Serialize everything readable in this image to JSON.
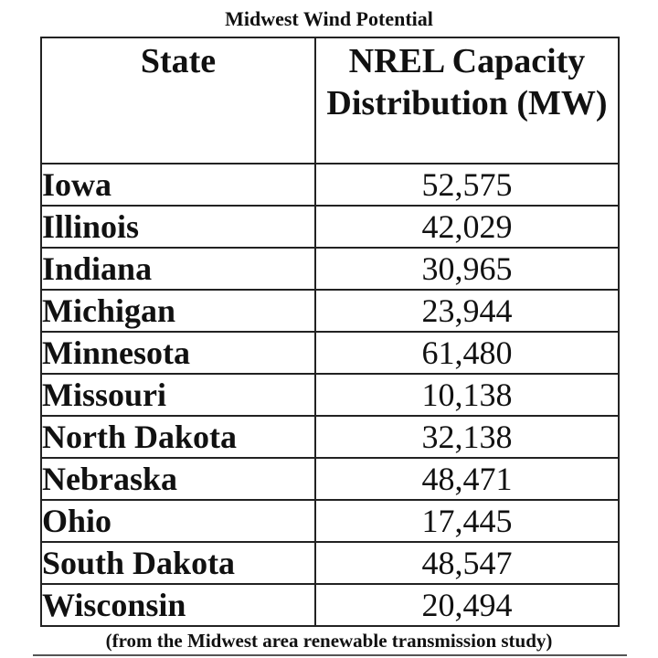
{
  "chart_data": {
    "type": "table",
    "title": "Midwest Wind Potential",
    "columns": [
      "State",
      "NREL Capacity Distribution (MW)"
    ],
    "rows": [
      {
        "state": "Iowa",
        "value": "52,575"
      },
      {
        "state": "Illinois",
        "value": "42,029"
      },
      {
        "state": "Indiana",
        "value": "30,965"
      },
      {
        "state": "Michigan",
        "value": "23,944"
      },
      {
        "state": "Minnesota",
        "value": "61,480"
      },
      {
        "state": "Missouri",
        "value": "10,138"
      },
      {
        "state": "North Dakota",
        "value": "32,138"
      },
      {
        "state": "Nebraska",
        "value": "48,471"
      },
      {
        "state": "Ohio",
        "value": "17,445"
      },
      {
        "state": "South Dakota",
        "value": "48,547"
      },
      {
        "state": "Wisconsin",
        "value": "20,494"
      }
    ],
    "source_note": "(from the Midwest area renewable transmission study)"
  }
}
